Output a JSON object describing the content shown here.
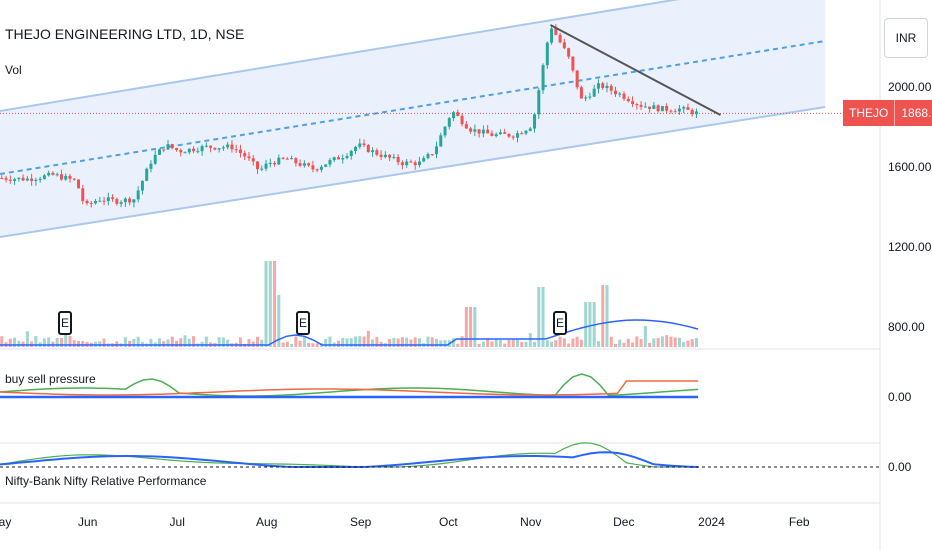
{
  "header": {
    "title": "THEJO ENGINEERING LTD, 1D, NSE",
    "volume_label": "Vol"
  },
  "currency_button": "INR",
  "price_badge": {
    "symbol": "THEJO",
    "price": "1868.10"
  },
  "earnings_marker_label": "E",
  "colors": {
    "up": "#26a69a",
    "down": "#ef5350",
    "channel_line": "#a9c7f0",
    "channel_fill": "#e8f0fc",
    "midline": "#4f9fe6",
    "trendline": "#555555",
    "ma_line": "#2962ff"
  },
  "chart_data": {
    "type": "candlestick",
    "symbol": "THEJO",
    "exchange": "NSE",
    "interval": "1D",
    "price_axis": {
      "ticks": [
        2000,
        1600,
        1200,
        800
      ],
      "tick_labels": [
        "2000.00",
        "1600.00",
        "1200.00",
        "800.00"
      ],
      "last_price": 1868.1
    },
    "x_axis": {
      "labels": [
        "May",
        "Jun",
        "Jul",
        "Aug",
        "Sep",
        "Oct",
        "Nov",
        "Dec",
        "2024",
        "Feb"
      ]
    },
    "price_path": [
      {
        "m": 0.0,
        "p": 1545
      },
      {
        "m": 0.3,
        "p": 1540
      },
      {
        "m": 0.6,
        "p": 1560
      },
      {
        "m": 0.85,
        "p": 1530
      },
      {
        "m": 0.95,
        "p": 1400
      },
      {
        "m": 1.1,
        "p": 1440
      },
      {
        "m": 1.3,
        "p": 1430
      },
      {
        "m": 1.5,
        "p": 1440
      },
      {
        "m": 1.7,
        "p": 1640
      },
      {
        "m": 1.85,
        "p": 1710
      },
      {
        "m": 2.0,
        "p": 1680
      },
      {
        "m": 2.3,
        "p": 1700
      },
      {
        "m": 2.6,
        "p": 1700
      },
      {
        "m": 2.75,
        "p": 1650
      },
      {
        "m": 2.9,
        "p": 1580
      },
      {
        "m": 3.0,
        "p": 1620
      },
      {
        "m": 3.2,
        "p": 1640
      },
      {
        "m": 3.5,
        "p": 1590
      },
      {
        "m": 3.85,
        "p": 1660
      },
      {
        "m": 4.0,
        "p": 1710
      },
      {
        "m": 4.2,
        "p": 1670
      },
      {
        "m": 4.5,
        "p": 1620
      },
      {
        "m": 4.7,
        "p": 1620
      },
      {
        "m": 4.85,
        "p": 1680
      },
      {
        "m": 5.05,
        "p": 1880
      },
      {
        "m": 5.25,
        "p": 1790
      },
      {
        "m": 5.5,
        "p": 1760
      },
      {
        "m": 5.75,
        "p": 1760
      },
      {
        "m": 5.95,
        "p": 1810
      },
      {
        "m": 6.05,
        "p": 2060
      },
      {
        "m": 6.15,
        "p": 2310
      },
      {
        "m": 6.35,
        "p": 2150
      },
      {
        "m": 6.5,
        "p": 1930
      },
      {
        "m": 6.7,
        "p": 2010
      },
      {
        "m": 6.9,
        "p": 1970
      },
      {
        "m": 7.15,
        "p": 1910
      },
      {
        "m": 7.4,
        "p": 1890
      },
      {
        "m": 7.6,
        "p": 1890
      },
      {
        "m": 7.8,
        "p": 1868
      }
    ],
    "channel": {
      "lower": [
        {
          "m": 0,
          "p": 1250
        },
        {
          "m": 9.22,
          "p": 1900
        }
      ],
      "upper": [
        {
          "m": 0,
          "p": 1880
        },
        {
          "m": 9.22,
          "p": 2560
        }
      ]
    },
    "trendline": [
      {
        "m": 6.15,
        "p": 2310
      },
      {
        "m": 8.05,
        "p": 1860
      }
    ],
    "earnings_months": [
      0.65,
      3.35,
      6.2
    ],
    "panes": [
      {
        "name": "buy sell pressure",
        "axis_label": "0.00"
      },
      {
        "name": "Nifty-Bank Nifty Relative Performance",
        "axis_label": "0.00"
      }
    ]
  }
}
